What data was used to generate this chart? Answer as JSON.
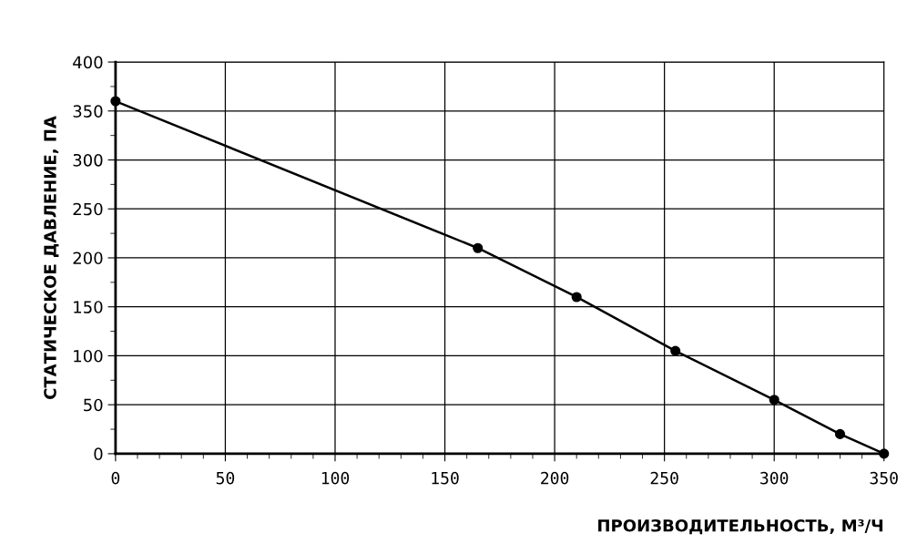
{
  "chart_data": {
    "type": "line",
    "xlabel": "ПРОИЗВОДИТЕЛЬНОСТЬ, М³/Ч",
    "ylabel": "СТАТИЧЕСКОЕ ДАВЛЕНИЕ, ПА",
    "x": [
      0,
      165,
      210,
      255,
      300,
      330,
      350
    ],
    "series": [
      {
        "color": "#000000",
        "values": [
          360,
          210,
          160,
          105,
          55,
          20,
          0
        ]
      }
    ],
    "marker": "circle",
    "line_style": "solid",
    "grid": true,
    "legend": false,
    "xlim": [
      0,
      350
    ],
    "ylim": [
      0,
      400
    ],
    "xticks": [
      0,
      {
        "value": 10,
        "label": null
      },
      {
        "value": 20,
        "label": null
      },
      {
        "value": 30,
        "label": null
      },
      {
        "value": 40,
        "label": null
      },
      50,
      {
        "value": 60,
        "label": null
      },
      {
        "value": 70,
        "label": null
      },
      {
        "value": 80,
        "label": null
      },
      {
        "value": 90,
        "label": null
      },
      100,
      {
        "value": 110,
        "label": null
      },
      {
        "value": 120,
        "label": null
      },
      {
        "value": 130,
        "label": null
      },
      {
        "value": 140,
        "label": null
      },
      150,
      {
        "value": 160,
        "label": null
      },
      {
        "value": 170,
        "label": null
      },
      {
        "value": 180,
        "label": null
      },
      {
        "value": 190,
        "label": null
      },
      200,
      {
        "value": 210,
        "label": null
      },
      {
        "value": 220,
        "label": null
      },
      {
        "value": 230,
        "label": null
      },
      {
        "value": 240,
        "label": null
      },
      250,
      {
        "value": 260,
        "label": null
      },
      {
        "value": 270,
        "label": null
      },
      {
        "value": 280,
        "label": null
      },
      {
        "value": 290,
        "label": null
      },
      300,
      {
        "value": 310,
        "label": null
      },
      {
        "value": 320,
        "label": null
      },
      {
        "value": 330,
        "label": null
      },
      {
        "value": 340,
        "label": null
      },
      350
    ],
    "yticks": [
      0,
      {
        "value": 25,
        "label": null
      },
      50,
      {
        "value": 75,
        "label": null
      },
      100,
      {
        "value": 125,
        "label": null
      },
      150,
      {
        "value": 175,
        "label": null
      },
      200,
      {
        "value": 225,
        "label": null
      },
      250,
      {
        "value": 275,
        "label": null
      },
      300,
      {
        "value": 325,
        "label": null
      },
      350,
      {
        "value": 375,
        "label": null
      },
      400
    ]
  }
}
